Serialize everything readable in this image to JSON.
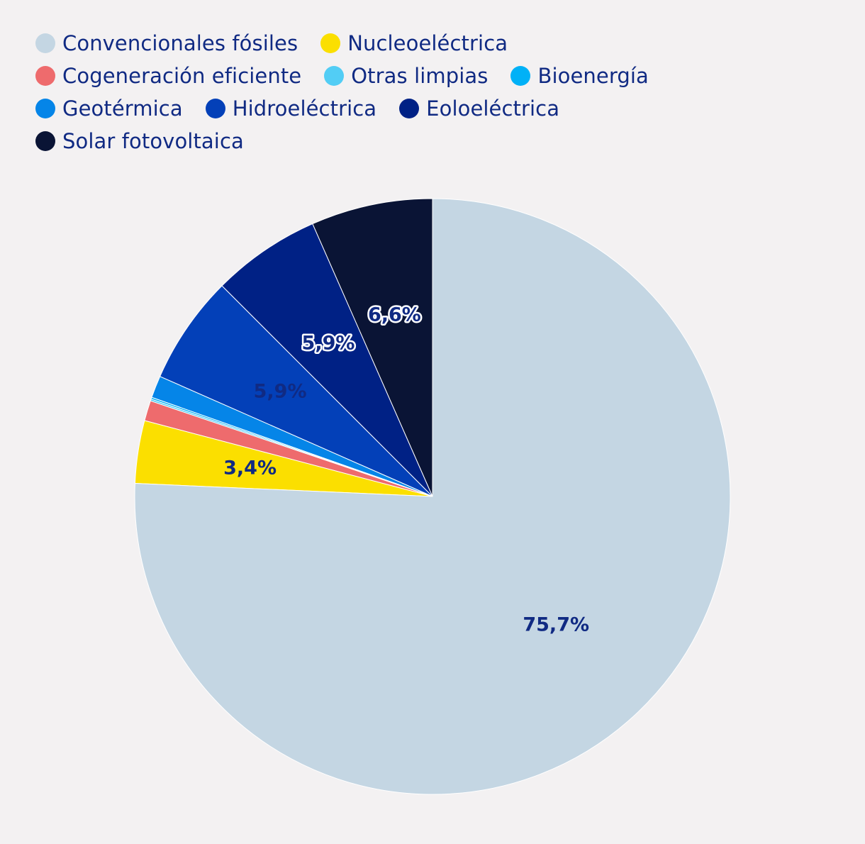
{
  "chart_data": {
    "type": "pie",
    "start": "top",
    "direction": "counterclockwise",
    "legend_position": "top-left",
    "slices": [
      {
        "name": "Solar fotovoltaica",
        "value": 6.6,
        "color": "#0a1435",
        "label": "6,6%",
        "label_style": "outlined"
      },
      {
        "name": "Eoloeléctrica",
        "value": 5.9,
        "color": "#002185",
        "label": "5,9%",
        "label_style": "outlined"
      },
      {
        "name": "Hidroeléctrica",
        "value": 5.9,
        "color": "#0340b8",
        "label": "5,9%",
        "label_style": "plain"
      },
      {
        "name": "Geotérmica",
        "value": 1.2,
        "color": "#0585e8",
        "label": "",
        "label_style": "plain"
      },
      {
        "name": "Bioenergía",
        "value": 0.1,
        "color": "#00b1f7",
        "label": "",
        "label_style": "plain"
      },
      {
        "name": "Otras limpias",
        "value": 0.1,
        "color": "#52cdf5",
        "label": "",
        "label_style": "plain"
      },
      {
        "name": "Cogeneración eficiente",
        "value": 1.1,
        "color": "#ee6b6d",
        "label": "",
        "label_style": "plain"
      },
      {
        "name": "Nucleoeléctrica",
        "value": 3.4,
        "color": "#fbdf00",
        "label": "3,4%",
        "label_style": "plain"
      },
      {
        "name": "Convencionales fósiles",
        "value": 75.7,
        "color": "#c4d6e3",
        "label": "75,7%",
        "label_style": "plain"
      }
    ],
    "legend_rows": [
      [
        "Convencionales fósiles",
        "Nucleoeléctrica"
      ],
      [
        "Cogeneración eficiente",
        "Otras limpias",
        "Bioenergía"
      ],
      [
        "Geotérmica",
        "Hidroeléctrica",
        "Eoloeléctrica"
      ],
      [
        "Solar fotovoltaica"
      ]
    ],
    "label_color": "#102a83",
    "outline_text_fill": "#102a83",
    "outline_text_stroke": "#ffffff"
  }
}
